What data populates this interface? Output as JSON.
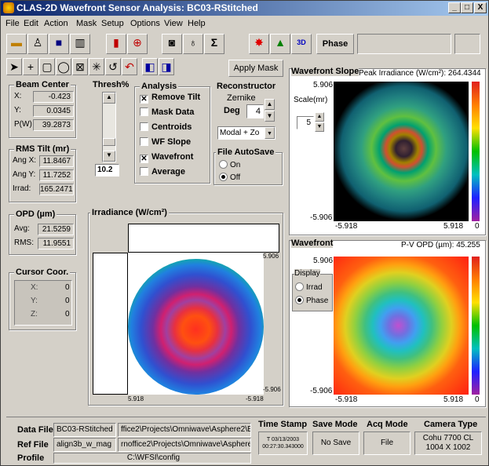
{
  "window": {
    "title": "CLAS-2D Wavefront Sensor Analysis: BC03-RStitched",
    "min": "_",
    "max": "□",
    "close": "X"
  },
  "menu": [
    "File",
    "Edit",
    "Action",
    "Mask",
    "Setup",
    "Options",
    "View",
    "Help"
  ],
  "toolbar": {
    "phase_label": "Phase",
    "apply_mask": "Apply Mask"
  },
  "beam_center": {
    "title": "Beam Center",
    "x_label": "X:",
    "x": "-0.423",
    "y_label": "Y:",
    "y": "0.0345",
    "p_label": "P(W)",
    "p": "39.2873"
  },
  "rms_tilt": {
    "title": "RMS Tilt (mr)",
    "angx_label": "Ang X:",
    "angx": "11.8467",
    "angy_label": "Ang Y:",
    "angy": "11.7252",
    "irrad_label": "Irrad:",
    "irrad": "165.2471"
  },
  "opd": {
    "title": "OPD (µm)",
    "avg_label": "Avg:",
    "avg": "21.5259",
    "rms_label": "RMS:",
    "rms": "11.9551"
  },
  "cursor": {
    "title": "Cursor Coor.",
    "x_label": "X:",
    "x": "0",
    "y_label": "Y:",
    "y": "0",
    "z_label": "Z:",
    "z": "0"
  },
  "thresh": {
    "title": "Thresh%",
    "value": "10.2"
  },
  "analysis": {
    "title": "Analysis",
    "items": [
      {
        "label": "Remove Tilt",
        "checked": true
      },
      {
        "label": "Mask Data",
        "checked": false
      },
      {
        "label": "Centroids",
        "checked": false
      },
      {
        "label": "WF Slope",
        "checked": false
      },
      {
        "label": "Wavefront",
        "checked": true
      },
      {
        "label": "Average",
        "checked": false
      }
    ]
  },
  "reconstructor": {
    "title": "Reconstructor",
    "zernike": "Zernike",
    "deg_label": "Deg",
    "deg": "4",
    "mode": "Modal + Zo"
  },
  "autosave": {
    "title": "File AutoSave",
    "on": "On",
    "off": "Off"
  },
  "irradiance_plot": {
    "title": "Irradiance (W/cm²)",
    "x_min": "5.918",
    "x_max": "-5.918",
    "y_top": "5.906",
    "y_bot": "-5.906"
  },
  "slope_plot": {
    "title": "Wavefront Slope",
    "peak": "Peak Irradiance (W/cm²): 264.4344",
    "scale_label": "Scale(mr)",
    "scale": "5",
    "y_top": "5.906",
    "y_bot": "-5.906",
    "x_min": "-5.918",
    "x_max": "5.918",
    "cbar_min": "0"
  },
  "wavefront_plot": {
    "title": "Wavefront",
    "pv": "P-V OPD (µm): 45.255",
    "display_label": "Display",
    "irrad": "Irrad",
    "phase": "Phase",
    "y_top": "5.906",
    "y_bot": "-5.906",
    "x_min": "-5.918",
    "x_max": "5.918",
    "cbar_min": "0"
  },
  "status": {
    "data_file_label": "Data File",
    "data_file": "BC03-RStitched",
    "data_path": "ffice2\\Projects\\Omniwave\\Asphere2\\Bc",
    "ref_file_label": "Ref File",
    "ref_file": "align3b_w_mag",
    "ref_path": "rnoffice2\\Projects\\Omniwave\\Asphere",
    "profile_label": "Profile",
    "profile": "C:\\WFSI\\config",
    "timestamp_label": "Time Stamp",
    "timestamp_date": "T 03/13/2003",
    "timestamp_time": "00:27:30.343000",
    "save_mode_label": "Save Mode",
    "save_mode": "No Save",
    "acq_mode_label": "Acq Mode",
    "acq_mode": "File",
    "camera_label": "Camera Type",
    "camera_model": "Cohu 7700 CL",
    "camera_res": "1004 X 1002"
  }
}
